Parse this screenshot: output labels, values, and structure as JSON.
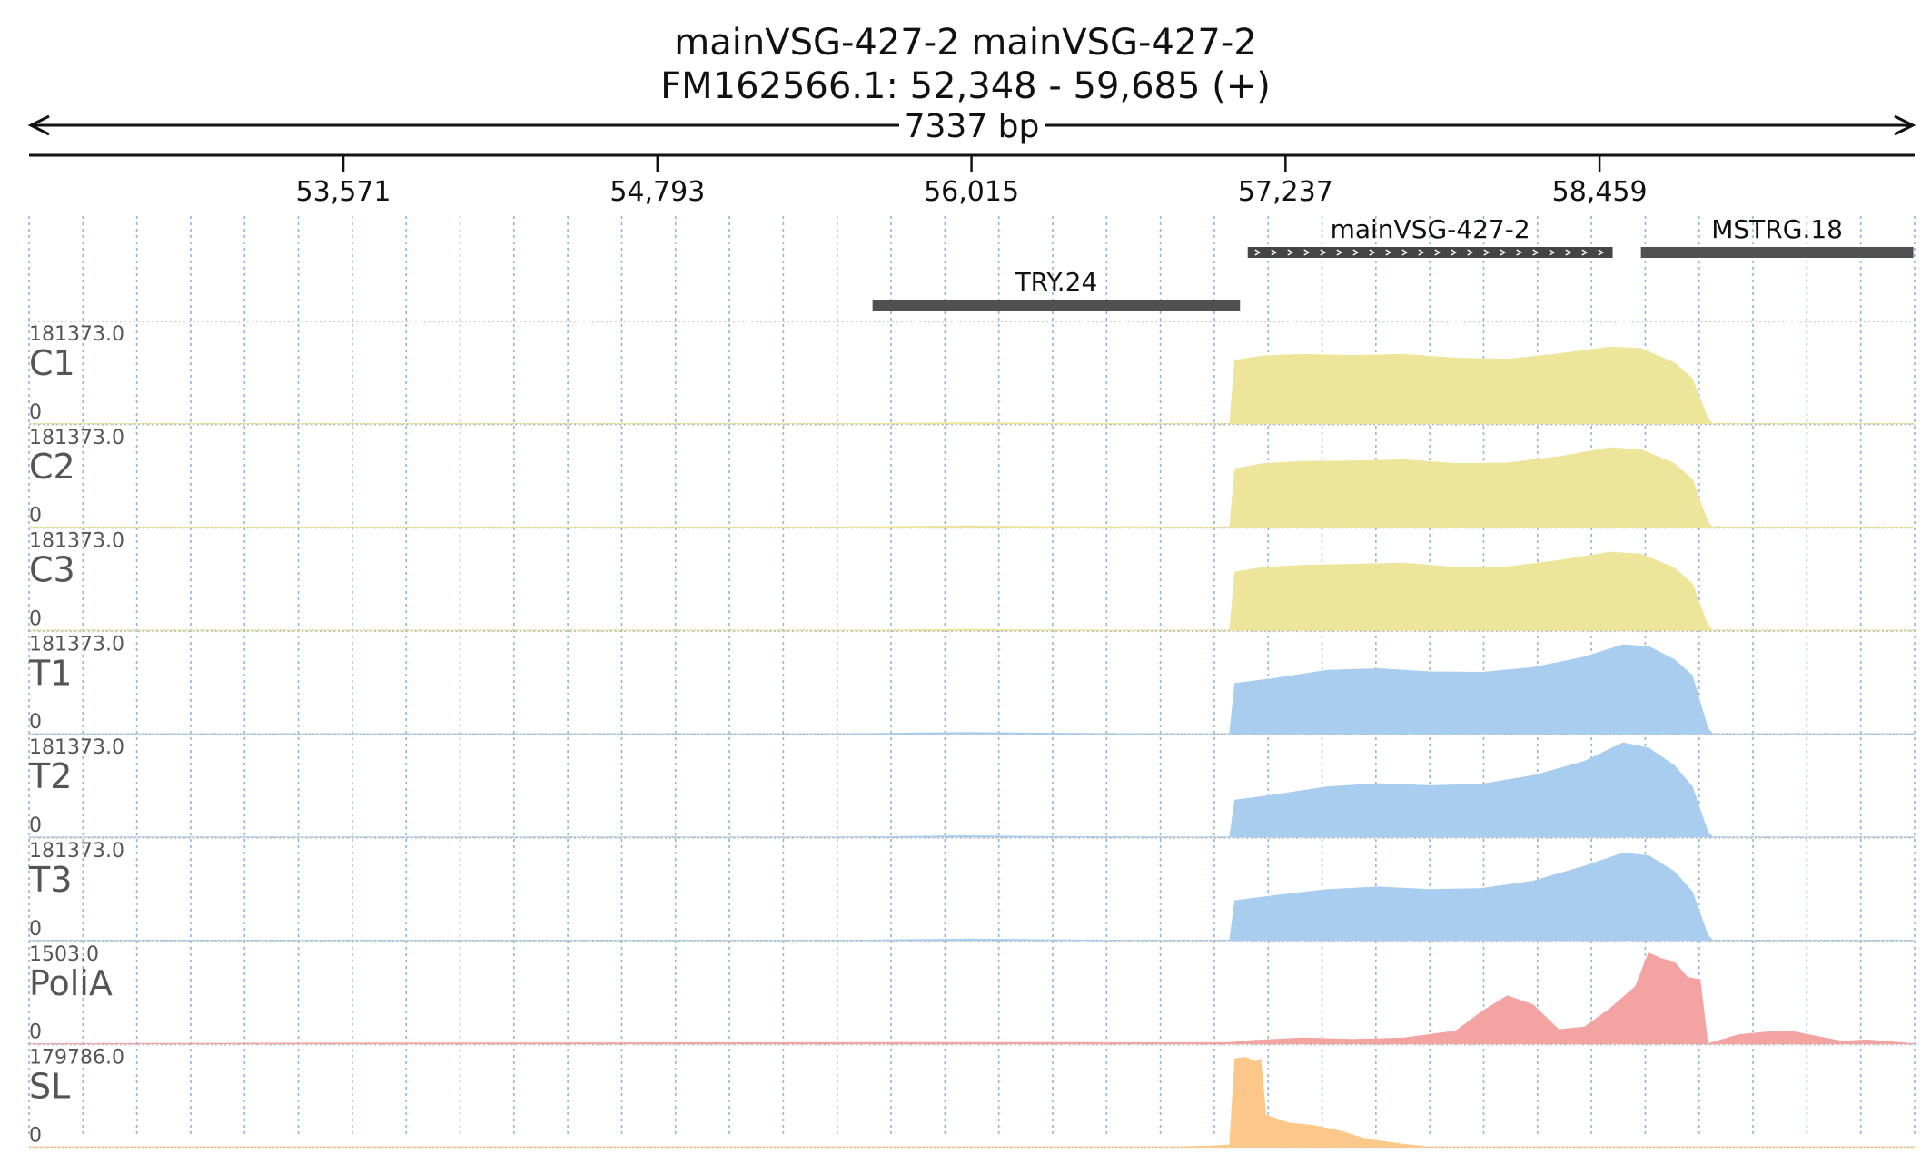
{
  "header": {
    "title_line1": "mainVSG-427-2  mainVSG-427-2",
    "title_line2": "FM162566.1: 52,348 - 59,685 (+)"
  },
  "chart_data": {
    "type": "area",
    "title": "mainVSG-427-2  mainVSG-427-2",
    "subtitle": "FM162566.1: 52,348 - 59,685 (+)",
    "locus": {
      "chrom": "FM162566.1",
      "start": 52348,
      "end": 59685,
      "strand": "+"
    },
    "span_label": "7337 bp",
    "xlim": [
      52348,
      59685
    ],
    "ticks": [
      53571,
      54793,
      56015,
      57237,
      58459
    ],
    "tick_labels": [
      "53,571",
      "54,793",
      "56,015",
      "57,237",
      "58,459"
    ],
    "grid": true,
    "genes": [
      {
        "name": "TRY.24",
        "start": 55630,
        "end": 57060,
        "strand": "",
        "row": 1
      },
      {
        "name": "mainVSG-427-2",
        "start": 57090,
        "end": 58510,
        "strand": "+",
        "row": 0
      },
      {
        "name": "MSTRG.18",
        "start": 58620,
        "end": 59680,
        "strand": "",
        "row": 0
      }
    ],
    "series": [
      {
        "name": "C1",
        "max": 181373.0,
        "max_label": "181373.0",
        "min_label": "0",
        "color": "#ede59a",
        "points": [
          [
            52348,
            0
          ],
          [
            55500,
            0
          ],
          [
            55800,
            1200
          ],
          [
            56000,
            2000
          ],
          [
            56300,
            1000
          ],
          [
            56800,
            0
          ],
          [
            57020,
            0
          ],
          [
            57040,
            120000
          ],
          [
            57150,
            128000
          ],
          [
            57300,
            131000
          ],
          [
            57500,
            129000
          ],
          [
            57700,
            131000
          ],
          [
            57900,
            124000
          ],
          [
            58100,
            122000
          ],
          [
            58300,
            132000
          ],
          [
            58500,
            145000
          ],
          [
            58620,
            142000
          ],
          [
            58750,
            115000
          ],
          [
            58820,
            85000
          ],
          [
            58880,
            10000
          ],
          [
            58900,
            0
          ],
          [
            59685,
            0
          ]
        ]
      },
      {
        "name": "C2",
        "max": 181373.0,
        "max_label": "181373.0",
        "min_label": "0",
        "color": "#ede59a",
        "points": [
          [
            52348,
            0
          ],
          [
            55500,
            0
          ],
          [
            55800,
            1400
          ],
          [
            56000,
            2200
          ],
          [
            56300,
            1000
          ],
          [
            56800,
            0
          ],
          [
            57020,
            0
          ],
          [
            57040,
            110000
          ],
          [
            57150,
            120000
          ],
          [
            57300,
            124000
          ],
          [
            57500,
            125000
          ],
          [
            57700,
            127000
          ],
          [
            57900,
            120000
          ],
          [
            58100,
            121000
          ],
          [
            58300,
            133000
          ],
          [
            58500,
            150000
          ],
          [
            58620,
            146000
          ],
          [
            58750,
            120000
          ],
          [
            58820,
            90000
          ],
          [
            58880,
            10000
          ],
          [
            58900,
            0
          ],
          [
            59685,
            0
          ]
        ]
      },
      {
        "name": "C3",
        "max": 181373.0,
        "max_label": "181373.0",
        "min_label": "0",
        "color": "#ede59a",
        "points": [
          [
            52348,
            0
          ],
          [
            55500,
            0
          ],
          [
            55800,
            1300
          ],
          [
            56000,
            2100
          ],
          [
            56300,
            1000
          ],
          [
            56800,
            0
          ],
          [
            57020,
            0
          ],
          [
            57040,
            110000
          ],
          [
            57150,
            119000
          ],
          [
            57300,
            123000
          ],
          [
            57500,
            125000
          ],
          [
            57700,
            127000
          ],
          [
            57900,
            119000
          ],
          [
            58100,
            120000
          ],
          [
            58300,
            132000
          ],
          [
            58500,
            148000
          ],
          [
            58620,
            144000
          ],
          [
            58750,
            118000
          ],
          [
            58820,
            88000
          ],
          [
            58880,
            10000
          ],
          [
            58900,
            0
          ],
          [
            59685,
            0
          ]
        ]
      },
      {
        "name": "T1",
        "max": 181373.0,
        "max_label": "181373.0",
        "min_label": "0",
        "color": "#a9cdee",
        "points": [
          [
            52348,
            0
          ],
          [
            55500,
            0
          ],
          [
            55800,
            1500
          ],
          [
            56000,
            2500
          ],
          [
            56300,
            1200
          ],
          [
            56800,
            0
          ],
          [
            57020,
            0
          ],
          [
            57040,
            95000
          ],
          [
            57200,
            105000
          ],
          [
            57400,
            120000
          ],
          [
            57600,
            123000
          ],
          [
            57800,
            117000
          ],
          [
            58000,
            116000
          ],
          [
            58200,
            125000
          ],
          [
            58400,
            145000
          ],
          [
            58550,
            168000
          ],
          [
            58650,
            165000
          ],
          [
            58750,
            140000
          ],
          [
            58820,
            110000
          ],
          [
            58880,
            10000
          ],
          [
            58900,
            0
          ],
          [
            59685,
            0
          ]
        ]
      },
      {
        "name": "T2",
        "max": 181373.0,
        "max_label": "181373.0",
        "min_label": "0",
        "color": "#a9cdee",
        "points": [
          [
            52348,
            0
          ],
          [
            55500,
            0
          ],
          [
            55800,
            1500
          ],
          [
            56000,
            2500
          ],
          [
            56300,
            1200
          ],
          [
            56800,
            0
          ],
          [
            57020,
            0
          ],
          [
            57040,
            70000
          ],
          [
            57200,
            80000
          ],
          [
            57400,
            95000
          ],
          [
            57600,
            101000
          ],
          [
            57800,
            97000
          ],
          [
            58000,
            100000
          ],
          [
            58200,
            116000
          ],
          [
            58400,
            143000
          ],
          [
            58550,
            178000
          ],
          [
            58650,
            168000
          ],
          [
            58750,
            135000
          ],
          [
            58820,
            95000
          ],
          [
            58880,
            10000
          ],
          [
            58900,
            0
          ],
          [
            59685,
            0
          ]
        ]
      },
      {
        "name": "T3",
        "max": 181373.0,
        "max_label": "181373.0",
        "min_label": "0",
        "color": "#a9cdee",
        "points": [
          [
            52348,
            0
          ],
          [
            55500,
            0
          ],
          [
            55800,
            1500
          ],
          [
            56000,
            2500
          ],
          [
            56300,
            1200
          ],
          [
            56800,
            0
          ],
          [
            57020,
            0
          ],
          [
            57040,
            75000
          ],
          [
            57200,
            85000
          ],
          [
            57400,
            96000
          ],
          [
            57600,
            101000
          ],
          [
            57800,
            96000
          ],
          [
            58000,
            98000
          ],
          [
            58200,
            112000
          ],
          [
            58400,
            140000
          ],
          [
            58550,
            165000
          ],
          [
            58650,
            160000
          ],
          [
            58750,
            130000
          ],
          [
            58820,
            92000
          ],
          [
            58880,
            10000
          ],
          [
            58900,
            0
          ],
          [
            59685,
            0
          ]
        ]
      },
      {
        "name": "PoliA",
        "max": 1503.0,
        "max_label": "1503.0",
        "min_label": "0",
        "color": "#f4a3a3",
        "points": [
          [
            52348,
            0
          ],
          [
            53500,
            10
          ],
          [
            55000,
            15
          ],
          [
            56000,
            20
          ],
          [
            56800,
            15
          ],
          [
            57020,
            20
          ],
          [
            57100,
            50
          ],
          [
            57300,
            90
          ],
          [
            57500,
            70
          ],
          [
            57700,
            90
          ],
          [
            57900,
            200
          ],
          [
            58000,
            500
          ],
          [
            58100,
            750
          ],
          [
            58200,
            610
          ],
          [
            58300,
            220
          ],
          [
            58400,
            260
          ],
          [
            58500,
            550
          ],
          [
            58600,
            900
          ],
          [
            58650,
            1420
          ],
          [
            58700,
            1330
          ],
          [
            58750,
            1280
          ],
          [
            58800,
            1040
          ],
          [
            58850,
            1000
          ],
          [
            58880,
            0
          ],
          [
            59000,
            140
          ],
          [
            59100,
            180
          ],
          [
            59200,
            200
          ],
          [
            59300,
            120
          ],
          [
            59400,
            40
          ],
          [
            59500,
            60
          ],
          [
            59685,
            0
          ]
        ]
      },
      {
        "name": "SL",
        "max": 179786.0,
        "max_label": "179786.0",
        "min_label": "0",
        "color": "#fcc88a",
        "points": [
          [
            52348,
            0
          ],
          [
            56800,
            0
          ],
          [
            56950,
            2000
          ],
          [
            57020,
            4000
          ],
          [
            57040,
            165000
          ],
          [
            57080,
            168000
          ],
          [
            57120,
            160000
          ],
          [
            57140,
            165000
          ],
          [
            57160,
            60000
          ],
          [
            57250,
            45000
          ],
          [
            57350,
            40000
          ],
          [
            57450,
            30000
          ],
          [
            57550,
            15000
          ],
          [
            57700,
            5000
          ],
          [
            57800,
            0
          ],
          [
            59685,
            0
          ]
        ]
      }
    ]
  }
}
